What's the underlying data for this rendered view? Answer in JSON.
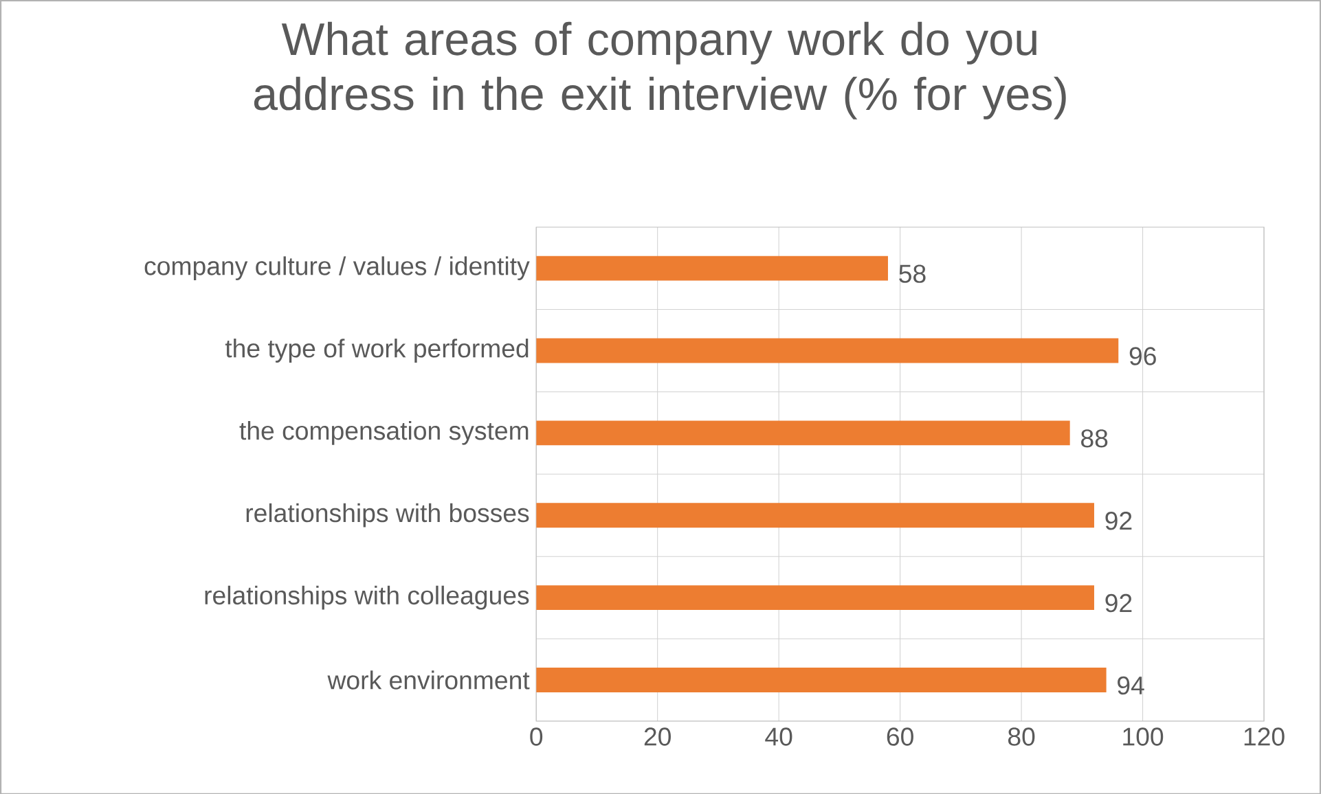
{
  "chart_data": {
    "type": "bar",
    "orientation": "horizontal",
    "title": "What areas of company work do you address in the exit interview (% for yes)",
    "categories": [
      "company culture / values / identity",
      "the type of work performed",
      "the compensation system",
      "relationships with bosses",
      "relationships with colleagues",
      "work environment"
    ],
    "values": [
      58,
      96,
      88,
      92,
      92,
      94
    ],
    "color": "#ed7d31",
    "xlim": [
      0,
      120
    ],
    "xticks": [
      0,
      20,
      40,
      60,
      80,
      100,
      120
    ],
    "grid": true,
    "data_labels": true
  }
}
